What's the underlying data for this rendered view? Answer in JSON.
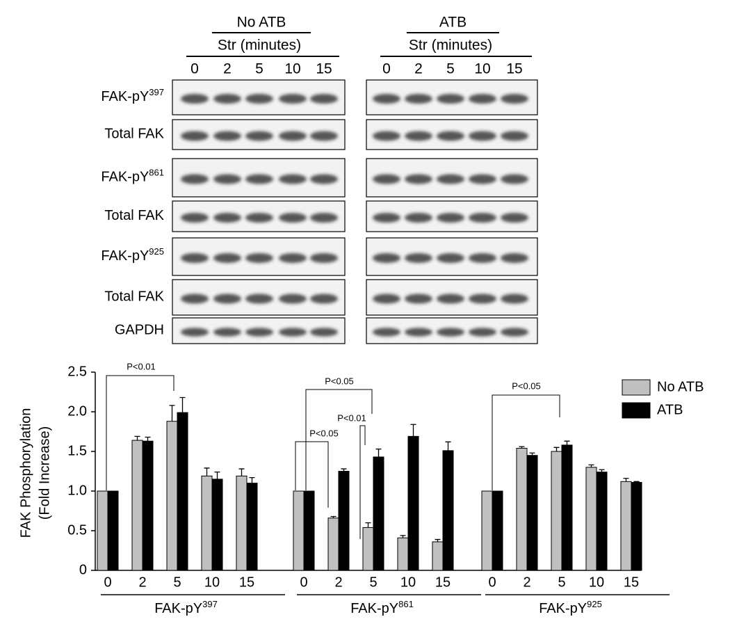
{
  "blots": {
    "panels": [
      {
        "group": "No ATB",
        "subtitle": "Str (minutes)",
        "lanes": [
          "0",
          "2",
          "5",
          "10",
          "15"
        ]
      },
      {
        "group": "ATB",
        "subtitle": "Str (minutes)",
        "lanes": [
          "0",
          "2",
          "5",
          "10",
          "15"
        ]
      }
    ],
    "rows": [
      {
        "label": "FAK-pY",
        "sup": "397"
      },
      {
        "label": "Total FAK"
      },
      {
        "label": "FAK-pY",
        "sup": "861"
      },
      {
        "label": "Total FAK"
      },
      {
        "label": "FAK-pY",
        "sup": "925"
      },
      {
        "label": "Total FAK"
      },
      {
        "label": "GAPDH"
      }
    ]
  },
  "chart_data": {
    "type": "bar",
    "ylabel": [
      "FAK  Phosphorylation",
      "(Fold Increase)"
    ],
    "categories": [
      "0",
      "2",
      "5",
      "10",
      "15",
      "0",
      "2",
      "5",
      "10",
      "15",
      "0",
      "2",
      "5",
      "10",
      "15"
    ],
    "groups": [
      {
        "label": "FAK-pY",
        "sup": "397"
      },
      {
        "label": "FAK-pY",
        "sup": "861"
      },
      {
        "label": "FAK-pY",
        "sup": "925"
      }
    ],
    "series": [
      {
        "name": "No ATB",
        "color": "#c0c0c0",
        "values": [
          1.0,
          1.64,
          1.88,
          1.19,
          1.19,
          1.0,
          0.66,
          0.54,
          0.41,
          0.36,
          1.0,
          1.54,
          1.5,
          1.3,
          1.12
        ],
        "errors": [
          0,
          0.05,
          0.2,
          0.1,
          0.09,
          0,
          0.02,
          0.06,
          0.03,
          0.03,
          0,
          0.02,
          0.05,
          0.03,
          0.04
        ]
      },
      {
        "name": "ATB",
        "color": "#000000",
        "values": [
          1.0,
          1.63,
          1.99,
          1.15,
          1.1,
          1.0,
          1.25,
          1.43,
          1.69,
          1.51,
          1.0,
          1.45,
          1.58,
          1.24,
          1.11
        ],
        "errors": [
          0,
          0.05,
          0.19,
          0.09,
          0.07,
          0,
          0.03,
          0.1,
          0.15,
          0.11,
          0,
          0.03,
          0.05,
          0.03,
          0.01
        ]
      }
    ],
    "ylim": [
      0,
      2.5
    ],
    "yticks": [
      0,
      0.5,
      {
        "value": 1,
        "label": "1.0"
      },
      1.5,
      {
        "value": 2,
        "label": "2.0"
      },
      2.5
    ],
    "annotations": [
      "P<0.01",
      "P<0.05",
      "P<0.05",
      "P<0.01",
      "P<0.05"
    ],
    "legend": "top-right"
  }
}
